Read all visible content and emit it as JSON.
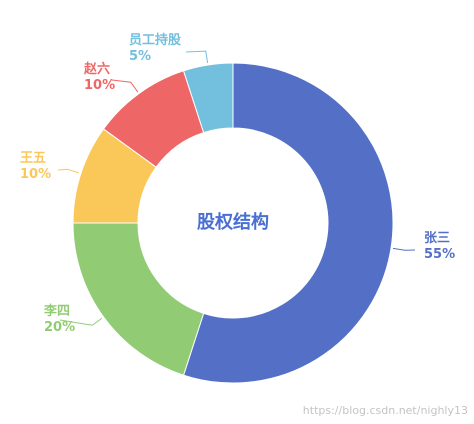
{
  "chart_data": {
    "type": "pie",
    "title": "股权结构",
    "slices": [
      {
        "name": "张三",
        "value": 55,
        "percent_label": "55%",
        "color": "#5470c6"
      },
      {
        "name": "李四",
        "value": 20,
        "percent_label": "20%",
        "color": "#91cc75"
      },
      {
        "name": "王五",
        "value": 10,
        "percent_label": "10%",
        "color": "#fac858"
      },
      {
        "name": "赵六",
        "value": 10,
        "percent_label": "10%",
        "color": "#ee6666"
      },
      {
        "name": "员工持股",
        "value": 5,
        "percent_label": "5%",
        "color": "#73c0de"
      }
    ],
    "title_color": "#4a6fd3"
  },
  "watermark": "https://blog.csdn.net/nighly13"
}
